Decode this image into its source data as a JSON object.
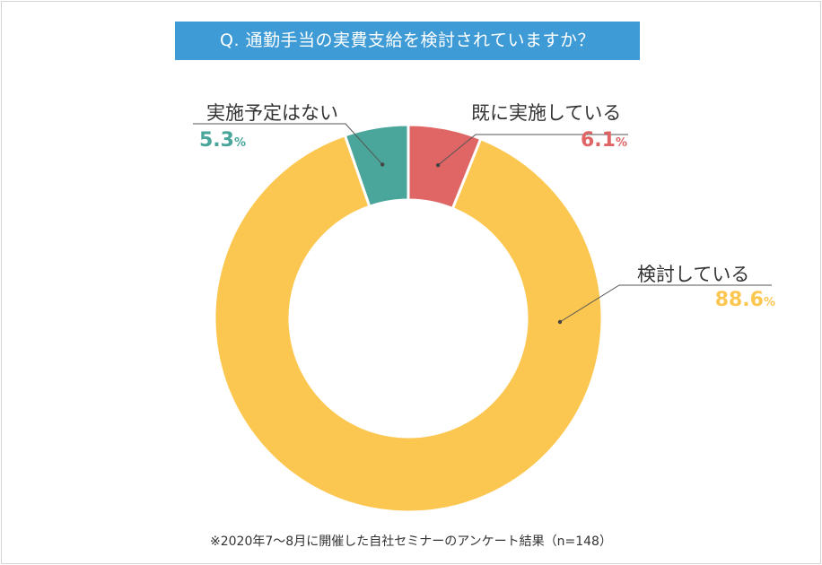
{
  "chart_data": {
    "type": "pie",
    "title": "Q. 通勤手当の実費支給を検討されていますか？",
    "slices": [
      {
        "label": "既に実施している",
        "value": 6.1,
        "value_text": "6.1",
        "unit": "%",
        "color": "#e06666"
      },
      {
        "label": "検討している",
        "value": 88.6,
        "value_text": "88.6",
        "unit": "%",
        "color": "#fcc751"
      },
      {
        "label": "実施予定はない",
        "value": 5.3,
        "value_text": "5.3",
        "unit": "%",
        "color": "#4aa69b"
      }
    ],
    "note": "※2020年7〜8月に開催した自社セミナーのアンケート結果（n=148）"
  }
}
